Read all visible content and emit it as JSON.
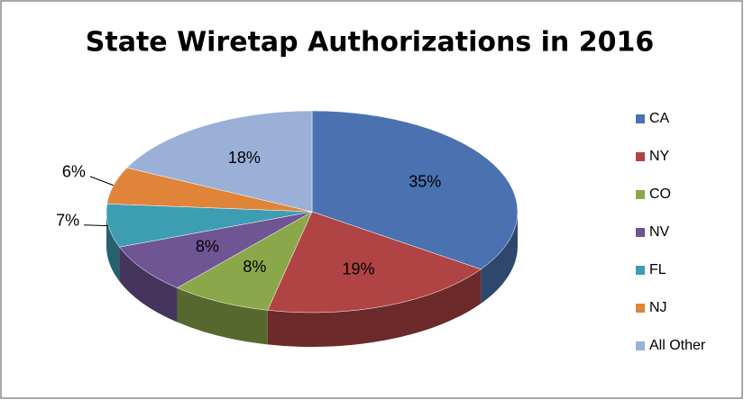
{
  "chart_data": {
    "type": "pie3d",
    "title": "State Wiretap Authorizations in 2016",
    "categories": [
      "CA",
      "NY",
      "CO",
      "NV",
      "FL",
      "NJ",
      "All Other"
    ],
    "values": [
      35,
      19,
      8,
      8,
      7,
      6,
      18
    ],
    "value_labels": [
      "35%",
      "19%",
      "8%",
      "8%",
      "7%",
      "6%",
      "18%"
    ],
    "colors": [
      "#4a72b0",
      "#b04444",
      "#8aa84a",
      "#6f5594",
      "#3d9db2",
      "#e0843a",
      "#9ab0d6"
    ],
    "legend": "right"
  }
}
